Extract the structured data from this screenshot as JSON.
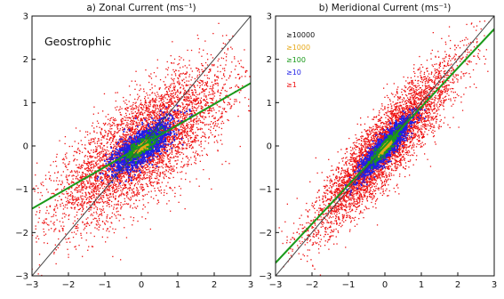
{
  "chart_data": [
    {
      "type": "scatter",
      "title": "a) Zonal Current (ms⁻¹)",
      "xlim": [
        -3,
        3
      ],
      "ylim": [
        -3,
        3
      ],
      "xticks": [
        "−3",
        "−2",
        "−1",
        "0",
        "1",
        "2",
        "3"
      ],
      "yticks": [
        "−3",
        "−2",
        "−1",
        "0",
        "1",
        "2",
        "3"
      ],
      "annotation": "Geostrophic",
      "density_levels": [
        {
          "label": "≥10000",
          "color": "#e6a817",
          "spread": [
            0.06,
            0.06
          ],
          "corr": 0.6
        },
        {
          "label": "≥1000",
          "color": "#e6a817",
          "spread": [
            0.14,
            0.12
          ],
          "corr": 0.6
        },
        {
          "label": "≥100",
          "color": "#1a9a1a",
          "spread": [
            0.34,
            0.26
          ],
          "corr": 0.6
        },
        {
          "label": "≥10",
          "color": "#1f1fe6",
          "spread": [
            0.75,
            0.6
          ],
          "corr": 0.65
        },
        {
          "label": "≥1",
          "color": "#ee1111",
          "spread": [
            2.1,
            1.8
          ],
          "corr": 0.55
        }
      ],
      "lines": [
        {
          "name": "1:1",
          "color": "#444444",
          "x": [
            -3,
            3
          ],
          "y": [
            -3,
            3
          ]
        },
        {
          "name": "fit",
          "color": "#1a9a1a",
          "x": [
            -3,
            3
          ],
          "y": [
            -1.45,
            1.45
          ]
        }
      ]
    },
    {
      "type": "scatter",
      "title": "b) Meridional Current (ms⁻¹)",
      "xlim": [
        -3,
        3
      ],
      "ylim": [
        -3,
        3
      ],
      "xticks": [
        "−3",
        "−2",
        "−1",
        "0",
        "1",
        "2",
        "3"
      ],
      "yticks": [
        "−3",
        "−2",
        "−1",
        "0",
        "1",
        "2",
        "3"
      ],
      "legend": [
        {
          "label": "≥10000",
          "color": "#111111"
        },
        {
          "label": "≥1000",
          "color": "#e6a817"
        },
        {
          "label": "≥100",
          "color": "#1a9a1a"
        },
        {
          "label": "≥10",
          "color": "#1f1fe6"
        },
        {
          "label": "≥1",
          "color": "#ee1111"
        }
      ],
      "density_levels": [
        {
          "label": "≥10000",
          "color": "#e6a817",
          "spread": [
            0.12,
            0.03
          ],
          "corr": 0.95
        },
        {
          "label": "≥1000",
          "color": "#e6a817",
          "spread": [
            0.2,
            0.05
          ],
          "corr": 0.95
        },
        {
          "label": "≥100",
          "color": "#1a9a1a",
          "spread": [
            0.42,
            0.1
          ],
          "corr": 0.95
        },
        {
          "label": "≥10",
          "color": "#1f1fe6",
          "spread": [
            0.9,
            0.2
          ],
          "corr": 0.95
        },
        {
          "label": "≥1",
          "color": "#ee1111",
          "spread": [
            2.4,
            0.55
          ],
          "corr": 0.95
        }
      ],
      "lines": [
        {
          "name": "1:1",
          "color": "#444444",
          "x": [
            -3,
            3
          ],
          "y": [
            -3,
            3
          ]
        },
        {
          "name": "fit",
          "color": "#1a9a1a",
          "x": [
            -3,
            3
          ],
          "y": [
            -2.7,
            2.7
          ]
        }
      ]
    }
  ]
}
